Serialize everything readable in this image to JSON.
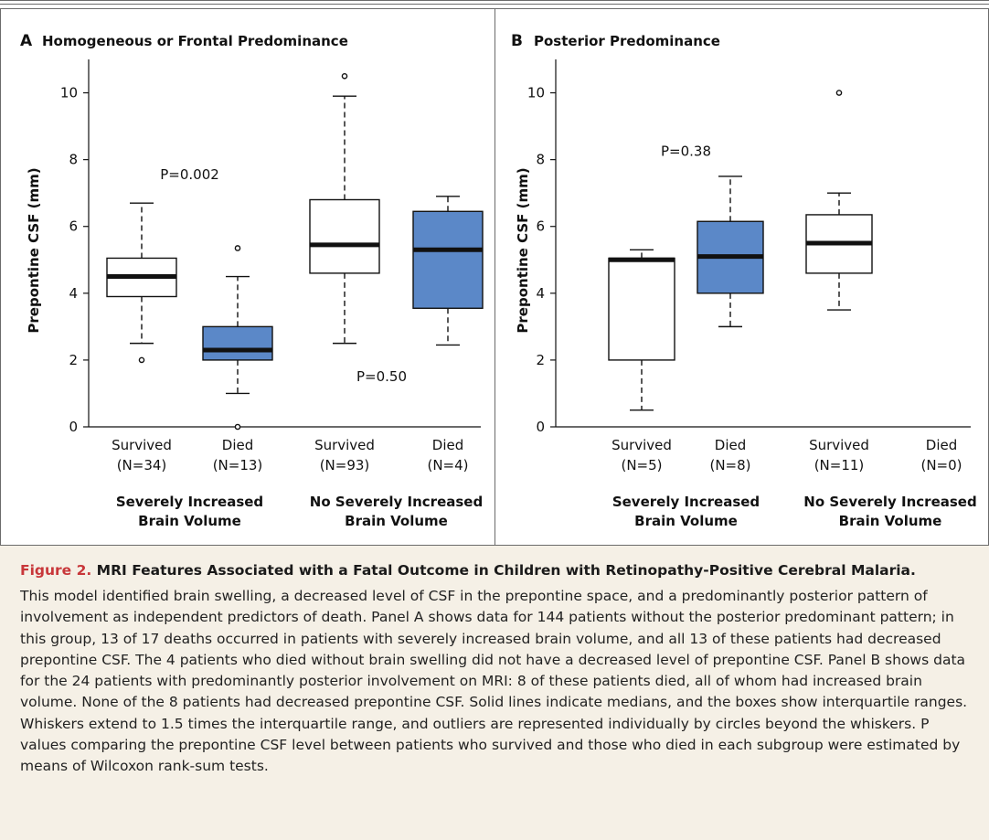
{
  "chart_data": [
    {
      "type": "box",
      "panel_label": "A",
      "title": "Homogeneous or Frontal Predominance",
      "ylabel": "Prepontine CSF (mm)",
      "ylim": [
        0,
        11
      ],
      "yticks": [
        "0",
        "2",
        "4",
        "6",
        "8",
        "10"
      ],
      "categories": [
        {
          "line1": "Survived",
          "line2": "(N=34)"
        },
        {
          "line1": "Died",
          "line2": "(N=13)"
        },
        {
          "line1": "Survived",
          "line2": "(N=93)"
        },
        {
          "line1": "Died",
          "line2": "(N=4)"
        }
      ],
      "groups": [
        {
          "label_line1": "Severely Increased",
          "label_line2": "Brain Volume"
        },
        {
          "label_line1": "No Severely Increased",
          "label_line2": "Brain Volume"
        }
      ],
      "boxes": [
        {
          "q1": 3.9,
          "median": 4.5,
          "q3": 5.05,
          "whisker_low": 2.5,
          "whisker_high": 6.7,
          "outliers": [
            2.0
          ],
          "fill": "white"
        },
        {
          "q1": 2.0,
          "median": 2.3,
          "q3": 3.0,
          "whisker_low": 1.0,
          "whisker_high": 4.5,
          "outliers": [
            5.35,
            0.0
          ],
          "fill": "blue"
        },
        {
          "q1": 4.6,
          "median": 5.45,
          "q3": 6.8,
          "whisker_low": 2.5,
          "whisker_high": 9.9,
          "outliers": [
            10.5
          ],
          "fill": "white"
        },
        {
          "q1": 3.55,
          "median": 5.3,
          "q3": 6.45,
          "whisker_low": 2.45,
          "whisker_high": 6.9,
          "outliers": [],
          "fill": "blue"
        }
      ],
      "annotations": [
        {
          "text": "P=0.002",
          "x": 1.5,
          "y": 7.55
        },
        {
          "text": "P=0.50",
          "x": 3.5,
          "y": 1.5
        }
      ]
    },
    {
      "type": "box",
      "panel_label": "B",
      "title": "Posterior Predominance",
      "ylabel": "Prepontine CSF (mm)",
      "ylim": [
        0,
        11
      ],
      "yticks": [
        "0",
        "2",
        "4",
        "6",
        "8",
        "10"
      ],
      "categories": [
        {
          "line1": "Survived",
          "line2": "(N=5)"
        },
        {
          "line1": "Died",
          "line2": "(N=8)"
        },
        {
          "line1": "Survived",
          "line2": "(N=11)"
        },
        {
          "line1": "Died",
          "line2": "(N=0)"
        }
      ],
      "groups": [
        {
          "label_line1": "Severely Increased",
          "label_line2": "Brain Volume"
        },
        {
          "label_line1": "No Severely Increased",
          "label_line2": "Brain Volume"
        }
      ],
      "boxes": [
        {
          "q1": 2.0,
          "median": 5.0,
          "q3": 5.05,
          "whisker_low": 0.5,
          "whisker_high": 5.3,
          "outliers": [],
          "fill": "white"
        },
        {
          "q1": 4.0,
          "median": 5.1,
          "q3": 6.15,
          "whisker_low": 3.0,
          "whisker_high": 7.5,
          "outliers": [],
          "fill": "blue"
        },
        {
          "q1": 4.6,
          "median": 5.5,
          "q3": 6.35,
          "whisker_low": 3.5,
          "whisker_high": 7.0,
          "outliers": [
            10.0
          ],
          "fill": "white"
        },
        null
      ],
      "annotations": [
        {
          "text": "P=0.38",
          "x": 1.5,
          "y": 8.25
        }
      ]
    }
  ],
  "colors": {
    "blue_fill": "#5b88c8",
    "caption_bg": "#f5f0e6",
    "figure_label": "#c8373a"
  },
  "caption": {
    "figure_label": "Figure 2.",
    "title": "MRI Features Associated with a Fatal Outcome in Children with Retinopathy-Positive Cerebral Malaria.",
    "text": "This model identified brain swelling, a decreased level of CSF in the prepontine space, and a predominantly posterior pattern of involvement as independent predictors of death. Panel A shows data for 144 patients without the posterior predominant pattern; in this group, 13 of 17 deaths occurred in patients with severely increased brain volume, and all 13 of these patients had decreased prepontine CSF. The 4 patients who died without brain swelling did not have a decreased level of prepontine CSF. Panel B shows data for the 24 patients with predominantly posterior involvement on MRI: 8 of these patients died, all of whom had increased brain volume. None of the 8 patients had decreased prepontine CSF. Solid lines indicate medians, and the boxes show interquartile ranges. Whiskers extend to 1.5 times the interquartile range, and outliers are represented individually by circles beyond the whiskers. P values comparing the prepontine CSF level between patients who survived and those who died in each subgroup were estimated by means of Wilcoxon rank-sum tests."
  }
}
